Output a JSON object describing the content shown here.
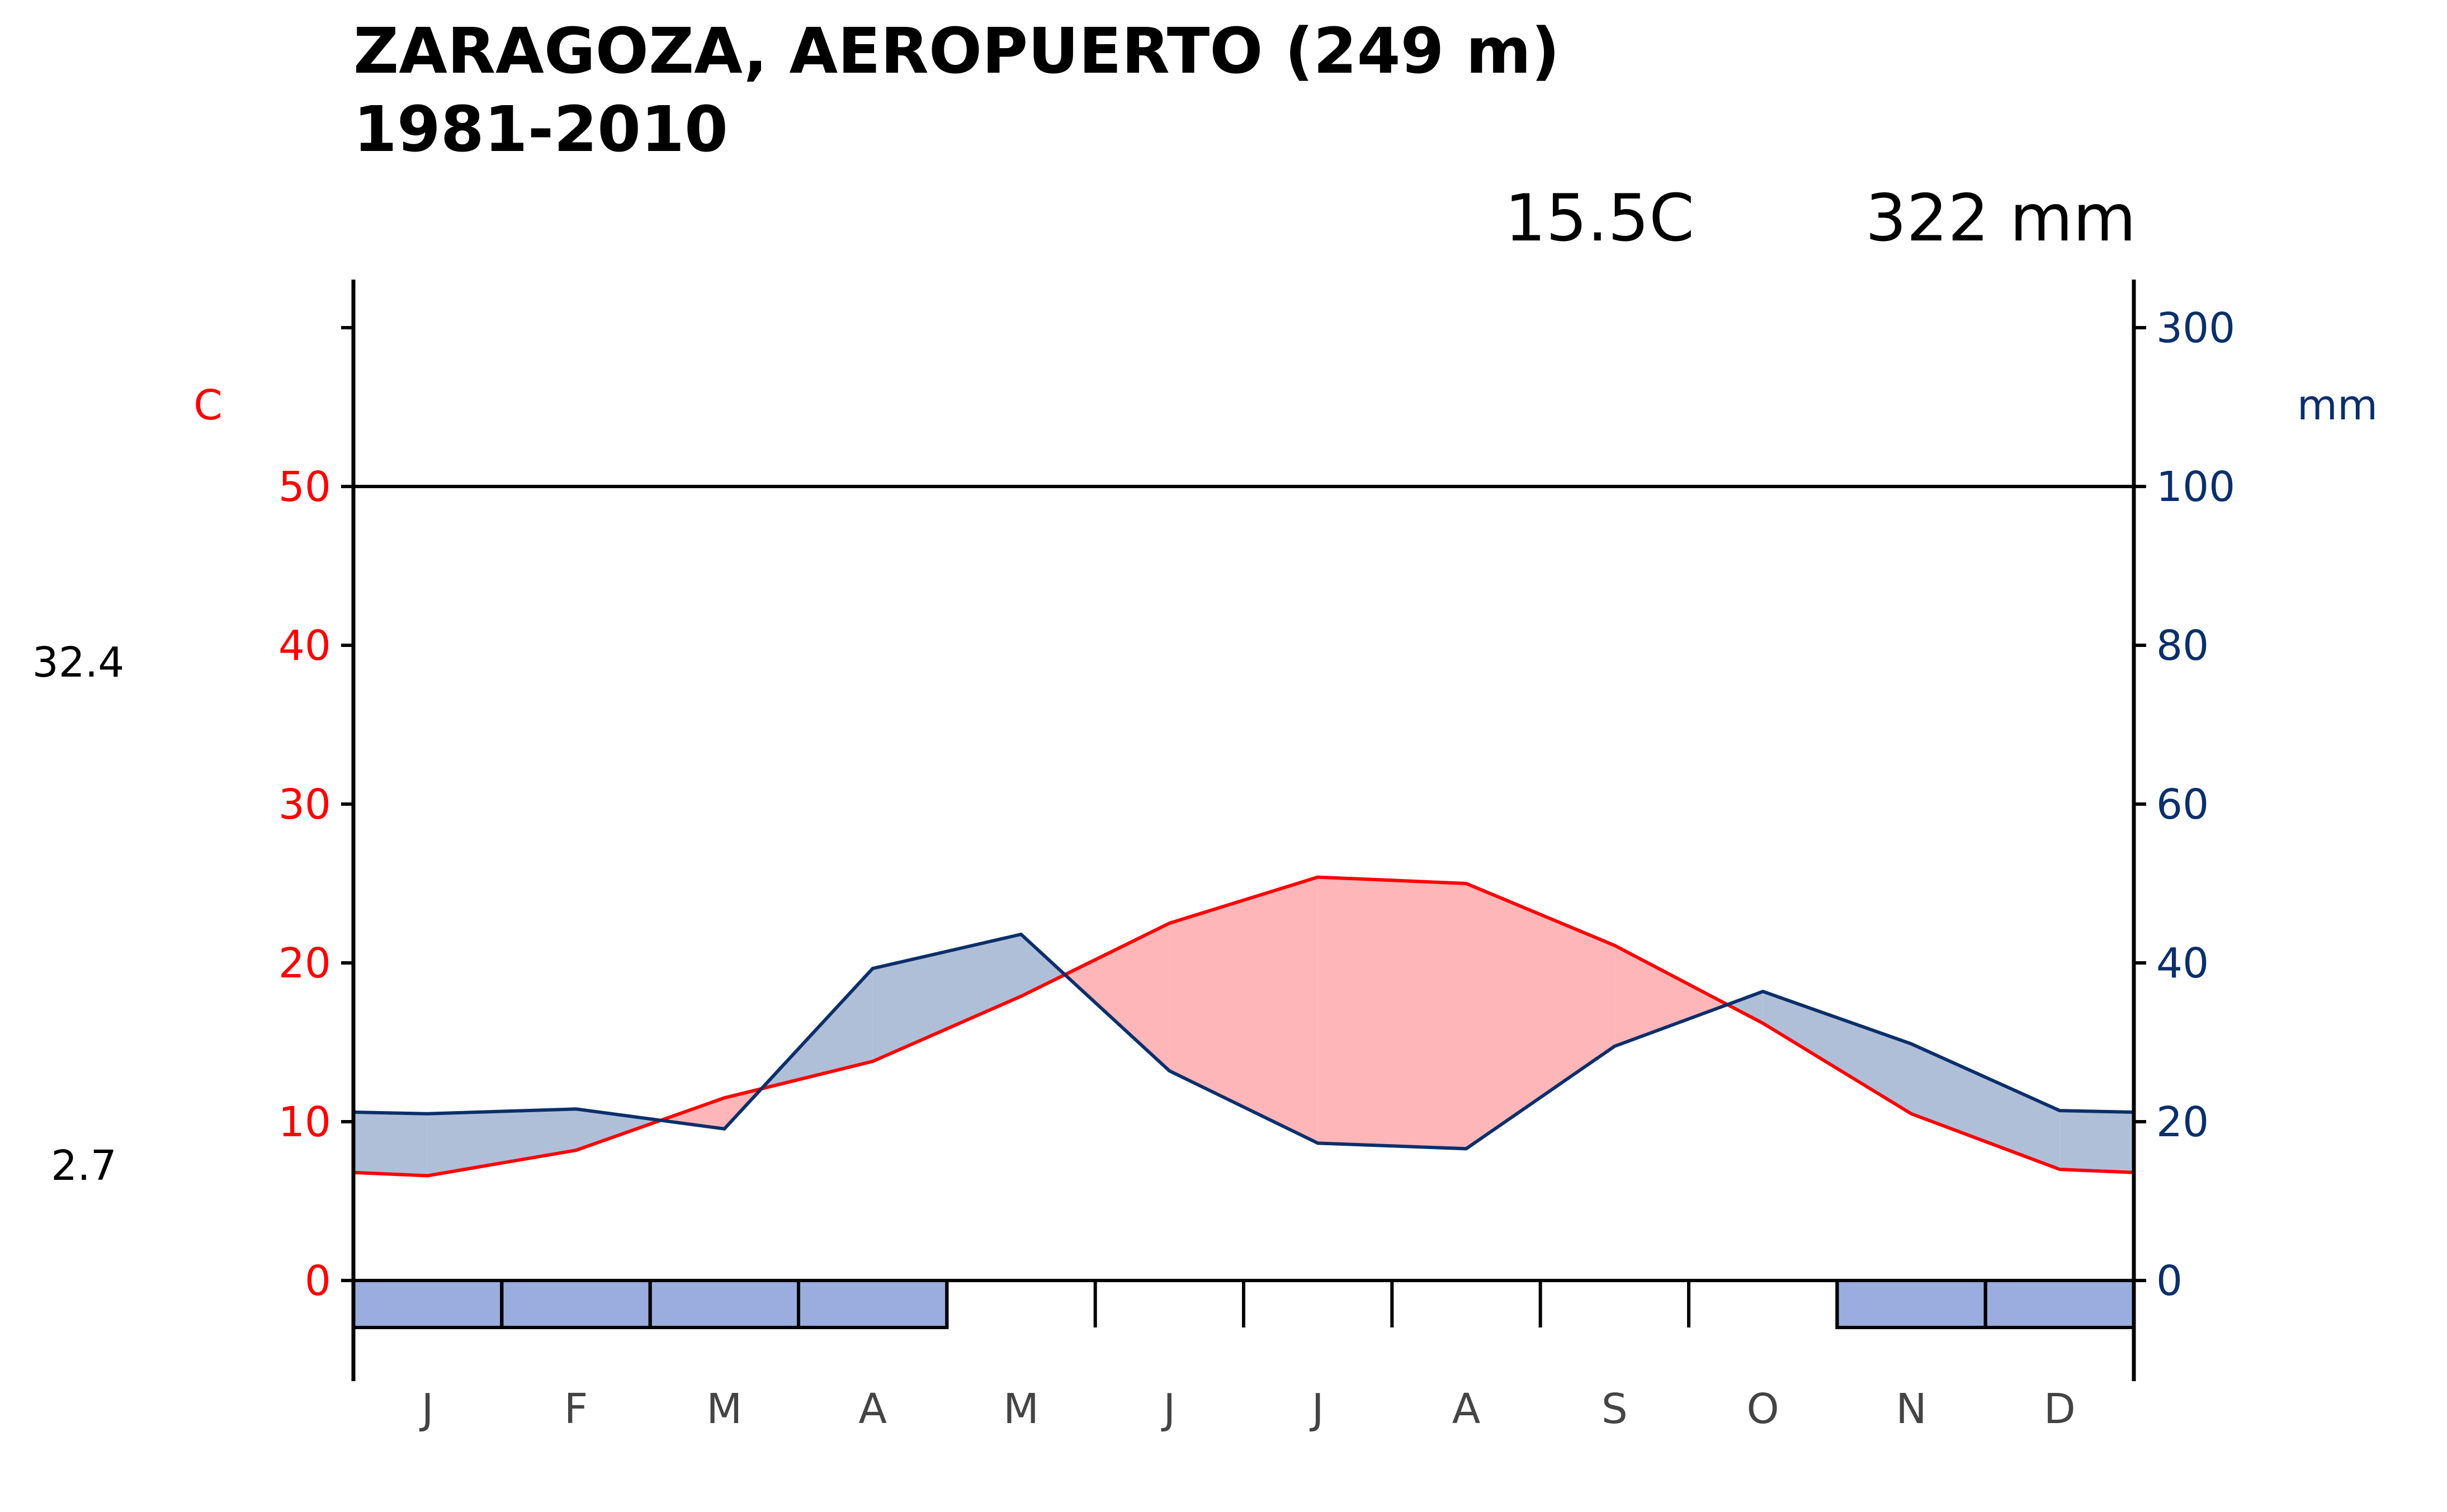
{
  "title": {
    "line1": "ZARAGOZA, AEROPUERTO (249 m)",
    "line2": "1981-2010"
  },
  "summary": {
    "mean_temp": "15.5C",
    "annual_precip": "322 mm"
  },
  "side_labels": {
    "max_temp": "32.4",
    "min_temp": "2.7"
  },
  "chart_data": {
    "type": "line",
    "categories": [
      "J",
      "F",
      "M",
      "A",
      "M",
      "J",
      "J",
      "A",
      "S",
      "O",
      "N",
      "D"
    ],
    "series": [
      {
        "axis": "left",
        "color": "#ff0000",
        "values": [
          6.6,
          8.2,
          11.5,
          13.8,
          17.9,
          22.5,
          25.4,
          25.0,
          21.1,
          16.2,
          10.5,
          7.0
        ]
      },
      {
        "axis": "right",
        "color": "#0b2f6b",
        "values": [
          21.0,
          21.6,
          19.1,
          39.3,
          43.6,
          26.4,
          17.3,
          16.6,
          29.5,
          36.4,
          29.8,
          21.4
        ]
      }
    ],
    "left_axis": {
      "label": "C",
      "ticks": [
        0,
        10,
        20,
        30,
        40,
        50
      ],
      "range": [
        0,
        60
      ]
    },
    "right_axis": {
      "label": "mm",
      "ticks": [
        0,
        20,
        40,
        60,
        80,
        100,
        300
      ]
    },
    "frost_months": [
      "J",
      "F",
      "M",
      "A",
      "N",
      "D"
    ],
    "wet_fill_color": "#b0bfd8",
    "dry_fill_color": "#ffb6b9",
    "frost_color": "#9badde",
    "grid": false
  }
}
